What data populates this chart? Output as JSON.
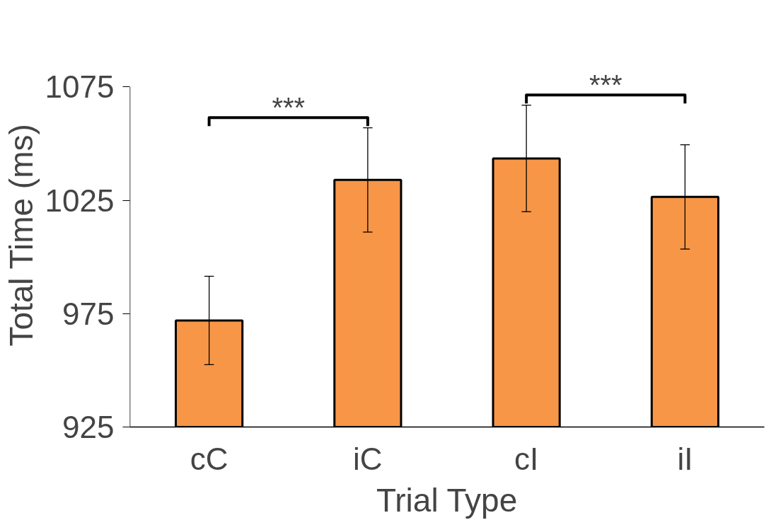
{
  "chart_data": {
    "type": "bar",
    "xlabel": "Trial Type",
    "ylabel": "Total Time (ms)",
    "categories": [
      "cC",
      "iC",
      "cI",
      "iI"
    ],
    "values": [
      972,
      1034,
      1043.5,
      1026.5
    ],
    "errors": [
      19.5,
      23,
      23.5,
      23
    ],
    "color": "#f79646",
    "ylim": [
      925,
      1075
    ],
    "yticks": [
      925,
      975,
      1025,
      1075
    ],
    "grid": false,
    "annotations": [
      "***",
      "***"
    ]
  }
}
